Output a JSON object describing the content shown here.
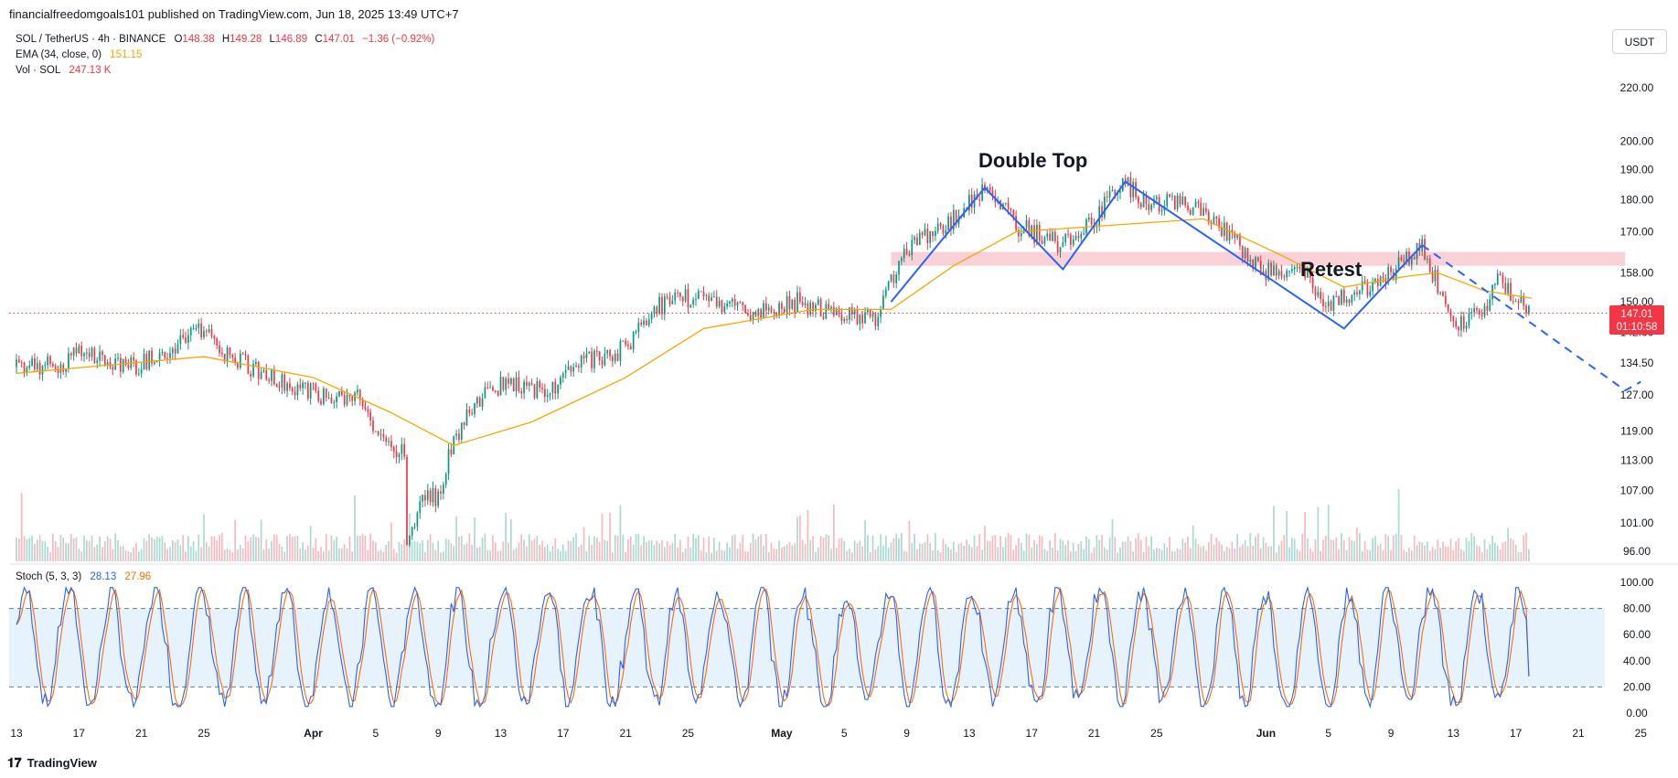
{
  "credit": "financialfreedomgoals101 published on TradingView.com, Jun 18, 2025 13:49 UTC+7",
  "legend": {
    "symbol": "SOL / TetherUS · 4h · BINANCE",
    "o_label": "O",
    "o": "148.38",
    "h_label": "H",
    "h": "149.28",
    "l_label": "L",
    "l": "146.89",
    "c_label": "C",
    "c": "147.01",
    "chg": "−1.36 (−0.92%)",
    "ema_label": "EMA (34, close, 0)",
    "ema": "151.15",
    "vol_label": "Vol · SOL",
    "vol": "247.13 K"
  },
  "stoch": {
    "label": "Stoch (5, 3, 3)",
    "k": "28.13",
    "d": "27.96"
  },
  "currency": "USDT",
  "price_tag": {
    "price": "147.01",
    "countdown": "01:10:58"
  },
  "annotations": {
    "double_top": "Double Top",
    "retest": "Retest"
  },
  "footer": {
    "logo": "TradingView"
  },
  "colors": {
    "up": "#089981",
    "down": "#f23645",
    "ema": "#f7a600",
    "pattern": "#2962ff",
    "zone": "#f8c5cc",
    "stoch_k": "#2962ff",
    "stoch_d": "#ff6d00",
    "stoch_band": "#e3f2fd"
  },
  "chart_data": [
    {
      "type": "candlestick",
      "title": "SOL / TetherUS · 4h · BINANCE",
      "y_scale": "log",
      "yticks": [
        "220.00",
        "200.00",
        "190.00",
        "180.00",
        "170.00",
        "158.00",
        "150.00",
        "142.00",
        "134.50",
        "127.00",
        "119.00",
        "113.00",
        "107.00",
        "101.00",
        "96.00"
      ],
      "xticks": [
        "13",
        "17",
        "21",
        "25",
        "Apr",
        "5",
        "9",
        "13",
        "17",
        "21",
        "25",
        "May",
        "5",
        "9",
        "13",
        "17",
        "21",
        "25",
        "Jun",
        "5",
        "9",
        "13",
        "17",
        "21",
        "25"
      ],
      "path": [
        [
          "2025-03-13",
          133.5
        ],
        [
          "2025-03-16",
          134
        ],
        [
          "2025-03-17",
          138
        ],
        [
          "2025-03-20",
          133
        ],
        [
          "2025-03-22",
          136
        ],
        [
          "2025-03-25",
          143
        ],
        [
          "2025-03-26",
          138
        ],
        [
          "2025-03-29",
          131
        ],
        [
          "2025-03-31",
          129
        ],
        [
          "2025-04-02",
          126
        ],
        [
          "2025-04-04",
          128
        ],
        [
          "2025-04-05",
          118
        ],
        [
          "2025-04-07",
          114
        ],
        [
          "2025-04-07",
          98
        ],
        [
          "2025-04-08",
          105
        ],
        [
          "2025-04-09",
          106
        ],
        [
          "2025-04-10",
          117
        ],
        [
          "2025-04-12",
          128
        ],
        [
          "2025-04-14",
          130
        ],
        [
          "2025-04-16",
          127
        ],
        [
          "2025-04-18",
          134
        ],
        [
          "2025-04-21",
          138
        ],
        [
          "2025-04-23",
          149
        ],
        [
          "2025-04-25",
          151
        ],
        [
          "2025-04-27",
          149
        ],
        [
          "2025-04-30",
          147
        ],
        [
          "2025-05-02",
          150
        ],
        [
          "2025-05-05",
          146
        ],
        [
          "2025-05-07",
          146
        ],
        [
          "2025-05-09",
          165
        ],
        [
          "2025-05-12",
          174
        ],
        [
          "2025-05-14",
          184
        ],
        [
          "2025-05-16",
          172
        ],
        [
          "2025-05-19",
          166
        ],
        [
          "2025-05-21",
          174
        ],
        [
          "2025-05-23",
          186
        ],
        [
          "2025-05-24",
          180
        ],
        [
          "2025-05-27",
          178
        ],
        [
          "2025-05-29",
          172
        ],
        [
          "2025-06-01",
          158
        ],
        [
          "2025-06-03",
          160
        ],
        [
          "2025-06-05",
          149
        ],
        [
          "2025-06-07",
          153
        ],
        [
          "2025-06-09",
          158
        ],
        [
          "2025-06-11",
          165
        ],
        [
          "2025-06-12",
          155
        ],
        [
          "2025-06-13",
          144
        ],
        [
          "2025-06-15",
          148
        ],
        [
          "2025-06-16",
          157
        ],
        [
          "2025-06-17",
          150
        ],
        [
          "2025-06-18",
          147
        ]
      ],
      "ema": [
        [
          "2025-03-13",
          132
        ],
        [
          "2025-03-25",
          136
        ],
        [
          "2025-04-01",
          131
        ],
        [
          "2025-04-06",
          123
        ],
        [
          "2025-04-10",
          116
        ],
        [
          "2025-04-15",
          121
        ],
        [
          "2025-04-21",
          131
        ],
        [
          "2025-04-26",
          143
        ],
        [
          "2025-05-03",
          148
        ],
        [
          "2025-05-08",
          148
        ],
        [
          "2025-05-12",
          160
        ],
        [
          "2025-05-16",
          170
        ],
        [
          "2025-05-22",
          172
        ],
        [
          "2025-05-28",
          174
        ],
        [
          "2025-06-02",
          163
        ],
        [
          "2025-06-06",
          154
        ],
        [
          "2025-06-10",
          157
        ],
        [
          "2025-06-12",
          158
        ],
        [
          "2025-06-15",
          153
        ],
        [
          "2025-06-18",
          151
        ]
      ],
      "resistance_zone": {
        "low": 160,
        "high": 164,
        "from": "2025-05-08",
        "to": "2025-06-24"
      },
      "pattern": [
        [
          "2025-05-08",
          150
        ],
        [
          "2025-05-14",
          184
        ],
        [
          "2025-05-19",
          159
        ],
        [
          "2025-05-23",
          186
        ],
        [
          "2025-06-06",
          143
        ],
        [
          "2025-06-11",
          166
        ]
      ],
      "projection": [
        [
          "2025-06-11",
          166
        ],
        [
          "2025-06-24",
          128
        ],
        [
          "2025-06-25",
          130
        ]
      ],
      "last_price": 147.01
    },
    {
      "type": "line",
      "title": "Stoch (5, 3, 3)",
      "yticks": [
        "100.00",
        "80.00",
        "60.00",
        "40.00",
        "20.00",
        "0.00"
      ],
      "bands": [
        20,
        80
      ],
      "series": [
        {
          "name": "%K",
          "last": 28.13,
          "cycle_days": 2.7
        },
        {
          "name": "%D",
          "last": 27.96,
          "cycle_days": 2.7
        }
      ]
    }
  ]
}
